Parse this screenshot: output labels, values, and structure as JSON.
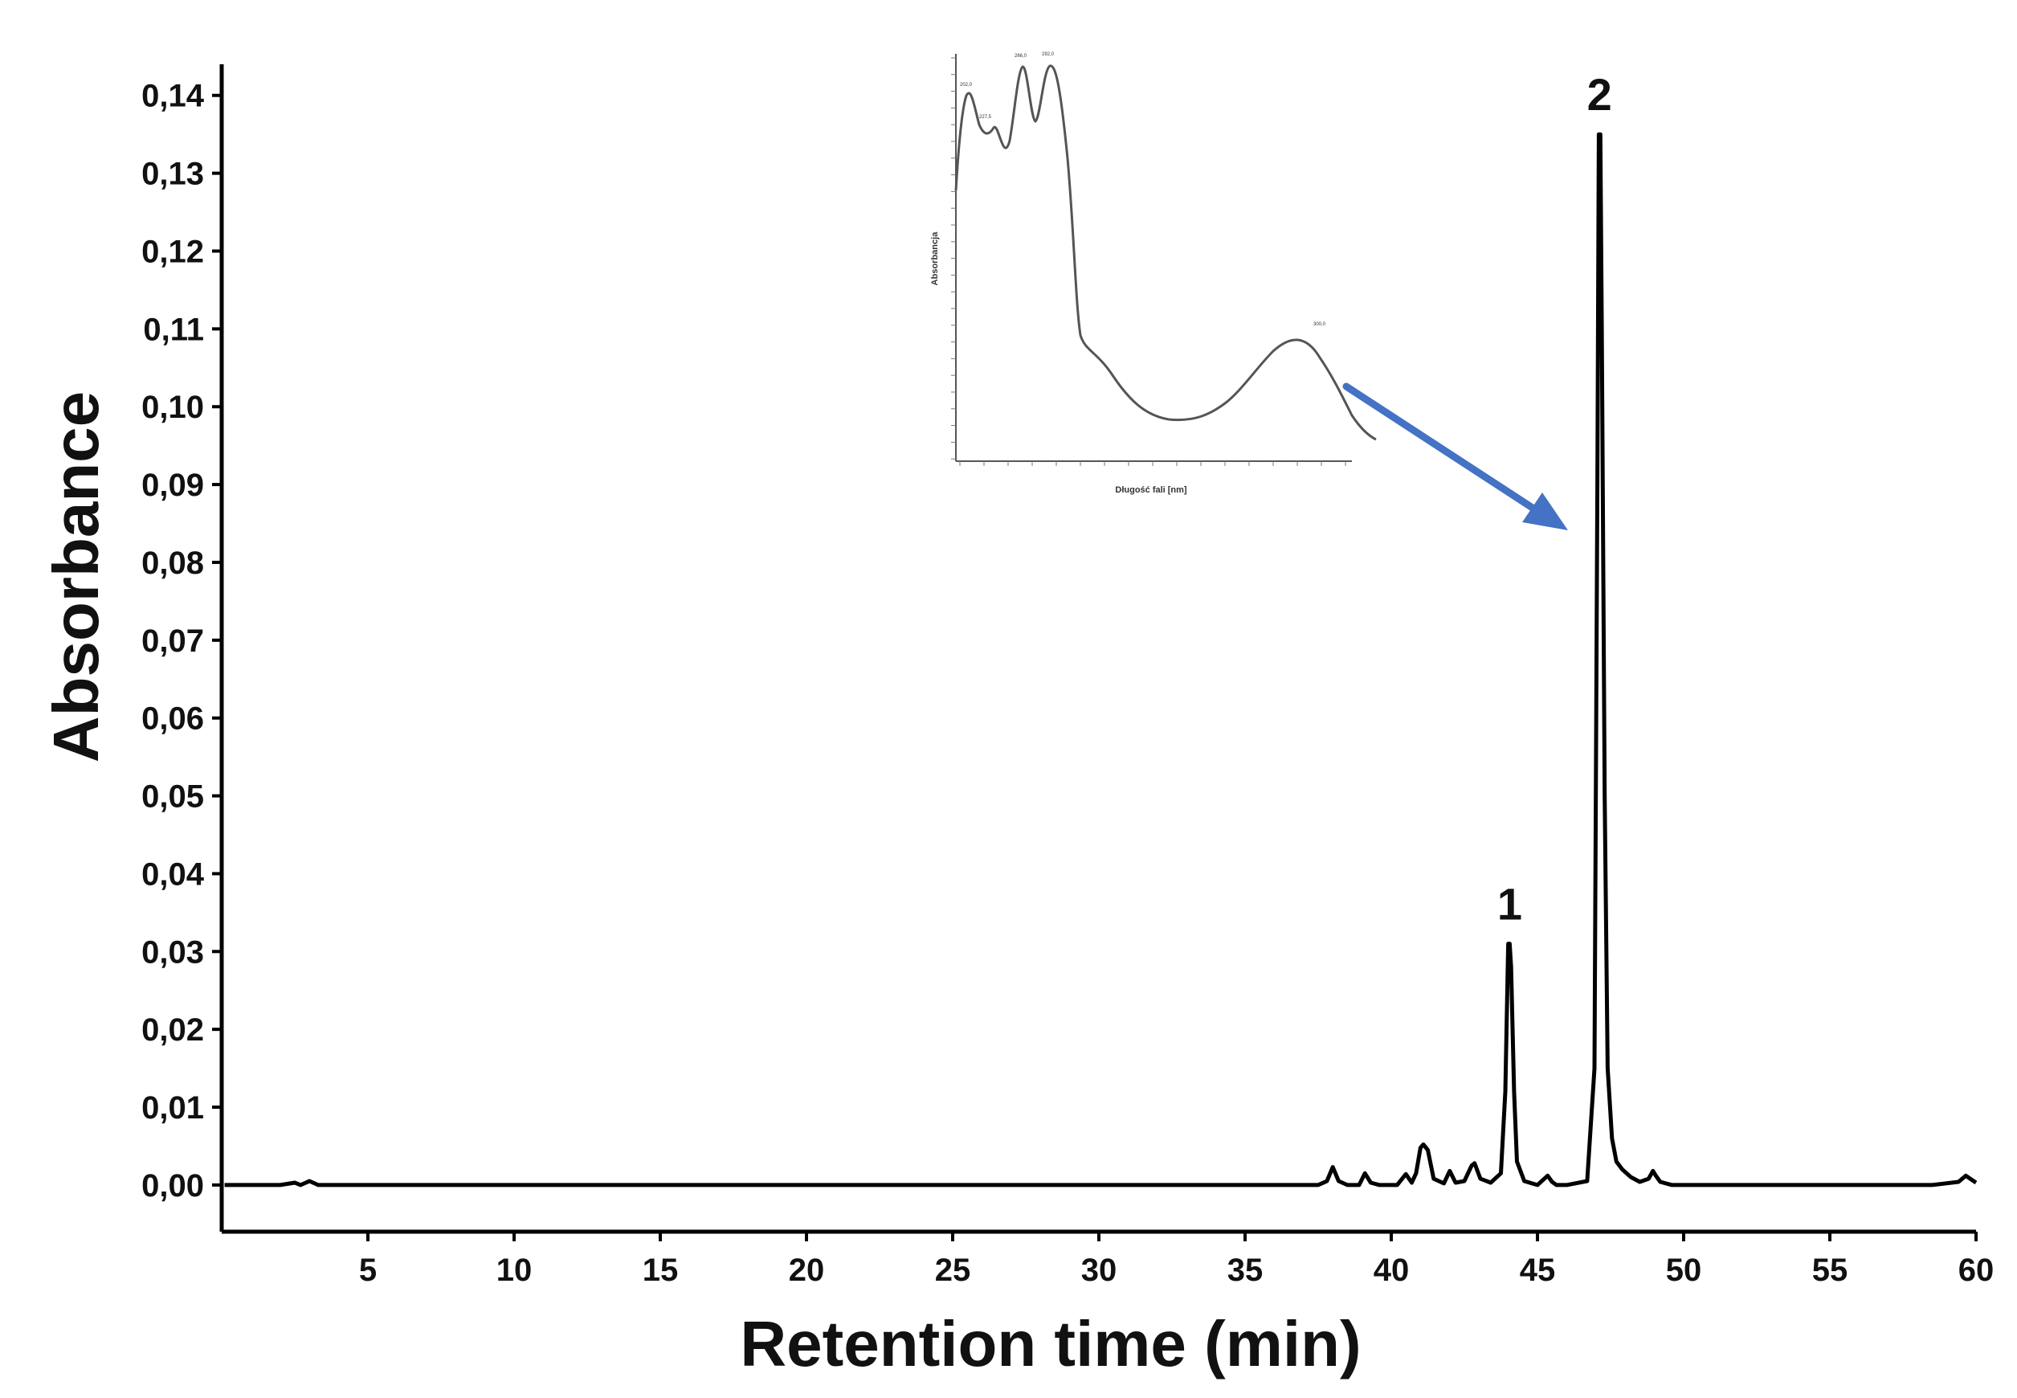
{
  "chart_data": {
    "type": "line",
    "title": "",
    "xlabel": "Retention time (min)",
    "ylabel": "Absorbance",
    "xlim": [
      0,
      60
    ],
    "ylim": [
      -0.006,
      0.144
    ],
    "xticks": [
      "5",
      "10",
      "15",
      "20",
      "25",
      "30",
      "35",
      "40",
      "45",
      "50",
      "55",
      "60"
    ],
    "xtick_values": [
      5,
      10,
      15,
      20,
      25,
      30,
      35,
      40,
      45,
      50,
      55,
      60
    ],
    "yticks": [
      "0,00",
      "0,01",
      "0,02",
      "0,03",
      "0,04",
      "0,05",
      "0,06",
      "0,07",
      "0,08",
      "0,09",
      "0,10",
      "0,11",
      "0,12",
      "0,13",
      "0,14"
    ],
    "ytick_values": [
      0,
      0.01,
      0.02,
      0.03,
      0.04,
      0.05,
      0.06,
      0.07,
      0.08,
      0.09,
      0.1,
      0.11,
      0.12,
      0.13,
      0.14
    ],
    "grid": false,
    "line_color": "#000000",
    "series": [
      {
        "x": [
          0.1,
          1.0,
          2.0,
          2.5,
          2.7,
          3.0,
          3.3,
          4.0,
          8.0,
          12.0,
          20.0,
          25.0,
          30.0,
          35.0,
          37.5,
          37.8,
          38.0,
          38.2,
          38.5,
          38.9,
          39.1,
          39.3,
          39.6,
          40.2,
          40.5,
          40.7,
          40.85,
          41.0,
          41.1,
          41.25,
          41.45,
          41.8,
          42.0,
          42.2,
          42.5,
          42.75,
          42.85,
          43.05,
          43.4,
          43.75,
          43.9,
          44.0,
          44.05,
          44.1,
          44.2,
          44.3,
          44.55,
          45.0,
          45.35,
          45.5,
          45.65,
          46.0,
          46.7,
          46.95,
          47.05,
          47.1,
          47.15,
          47.2,
          47.3,
          47.4,
          47.55,
          47.7,
          47.9,
          48.2,
          48.5,
          48.8,
          48.95,
          49.05,
          49.2,
          49.6,
          50.5,
          55.0,
          58.5,
          59.4,
          59.65,
          59.8,
          60.0
        ],
        "y": [
          0.0,
          0.0,
          0.0,
          0.0003,
          0.0,
          0.0005,
          0.0,
          0.0,
          0.0,
          0.0,
          0.0,
          0.0,
          0.0,
          0.0,
          0.0,
          0.0005,
          0.0023,
          0.0005,
          0.0,
          0.0,
          0.0015,
          0.0003,
          0.0,
          0.0,
          0.0014,
          0.0003,
          0.0015,
          0.0048,
          0.0052,
          0.0045,
          0.0008,
          0.0002,
          0.0018,
          0.0003,
          0.0005,
          0.0025,
          0.0028,
          0.0008,
          0.0003,
          0.0015,
          0.012,
          0.031,
          0.031,
          0.028,
          0.012,
          0.003,
          0.0005,
          0.0,
          0.0012,
          0.0004,
          0.0,
          0.0,
          0.0005,
          0.015,
          0.09,
          0.135,
          0.135,
          0.11,
          0.05,
          0.015,
          0.006,
          0.003,
          0.002,
          0.001,
          0.0004,
          0.0008,
          0.0018,
          0.0012,
          0.0004,
          0.0,
          0.0,
          0.0,
          0.0,
          0.0004,
          0.0012,
          0.0008,
          0.0003
        ]
      }
    ],
    "annotations": [
      {
        "text": "1",
        "x": 44.05,
        "y": 0.031
      },
      {
        "text": "2",
        "x": 47.12,
        "y": 0.135
      }
    ],
    "inset": {
      "type": "line",
      "xlabel": "Długość fali [nm]",
      "ylabel": "Absorbancja",
      "peak_labels": [
        "202,0",
        "227,5",
        "266,0",
        "292,0",
        "300,0"
      ],
      "arrow_color": "#4472C4"
    }
  }
}
